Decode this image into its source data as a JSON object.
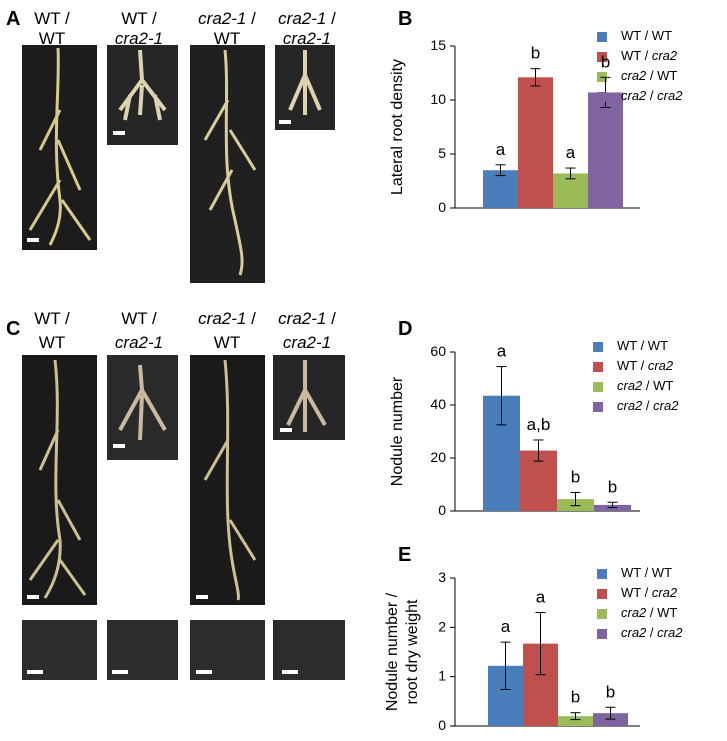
{
  "panel_letters": [
    "A",
    "B",
    "C",
    "D",
    "E"
  ],
  "photo_labels": {
    "A": [
      [
        "WT /",
        "WT"
      ],
      [
        "WT /",
        "cra2-1"
      ],
      [
        "cra2-1 /",
        "WT"
      ],
      [
        "cra2-1 /",
        "cra2-1"
      ]
    ],
    "C": [
      [
        "WT /",
        "WT"
      ],
      [
        "WT /",
        "cra2-1"
      ],
      [
        "cra2-1 /",
        "WT"
      ],
      [
        "cra2-1 /",
        "cra2-1"
      ]
    ]
  },
  "chart_data": [
    {
      "type": "bar",
      "ylabel": [
        "Lateral root density"
      ],
      "ylim": [
        0,
        15
      ],
      "yticks": [
        0,
        5,
        10,
        15
      ],
      "series": [
        {
          "name": "WT / WT",
          "color": "#4a7ebb",
          "values": [
            3.5
          ],
          "errors": [
            0.5
          ],
          "annotations": [
            "a"
          ]
        },
        {
          "name": "WT / cra2",
          "color": "#c0504d",
          "values": [
            12.1
          ],
          "errors": [
            0.8
          ],
          "annotations": [
            "b"
          ]
        },
        {
          "name": "cra2 / WT",
          "color": "#9bbb59",
          "values": [
            3.2
          ],
          "errors": [
            0.5
          ],
          "annotations": [
            "a"
          ]
        },
        {
          "name": "cra2 / cra2",
          "color": "#8064a2",
          "values": [
            10.7
          ],
          "errors": [
            1.4
          ],
          "annotations": [
            "b"
          ]
        }
      ]
    },
    {
      "type": "bar",
      "ylabel": [
        "Nodule number"
      ],
      "ylim": [
        0,
        60
      ],
      "yticks": [
        0,
        20,
        40,
        60
      ],
      "series": [
        {
          "name": "WT / WT",
          "color": "#4a7ebb",
          "values": [
            43.5
          ],
          "errors": [
            11
          ],
          "annotations": [
            "a"
          ]
        },
        {
          "name": "WT / cra2",
          "color": "#c0504d",
          "values": [
            22.8
          ],
          "errors": [
            4
          ],
          "annotations": [
            "a,b"
          ]
        },
        {
          "name": "cra2 / WT",
          "color": "#9bbb59",
          "values": [
            4.5
          ],
          "errors": [
            2.5
          ],
          "annotations": [
            "b"
          ]
        },
        {
          "name": "cra2 / cra2",
          "color": "#8064a2",
          "values": [
            2.3
          ],
          "errors": [
            1
          ],
          "annotations": [
            "b"
          ]
        }
      ]
    },
    {
      "type": "bar",
      "ylabel": [
        "Nodule number /",
        "root dry weight"
      ],
      "ylim": [
        0,
        3
      ],
      "yticks": [
        0,
        1,
        2,
        3
      ],
      "series": [
        {
          "name": "WT / WT",
          "color": "#4a7ebb",
          "values": [
            1.22
          ],
          "errors": [
            0.48
          ],
          "annotations": [
            "a"
          ]
        },
        {
          "name": "WT / cra2",
          "color": "#c0504d",
          "values": [
            1.67
          ],
          "errors": [
            0.63
          ],
          "annotations": [
            "a"
          ]
        },
        {
          "name": "cra2 / WT",
          "color": "#9bbb59",
          "values": [
            0.2
          ],
          "errors": [
            0.07
          ],
          "annotations": [
            "b"
          ]
        },
        {
          "name": "cra2 / cra2",
          "color": "#8064a2",
          "values": [
            0.26
          ],
          "errors": [
            0.12
          ],
          "annotations": [
            "b"
          ]
        }
      ]
    }
  ]
}
